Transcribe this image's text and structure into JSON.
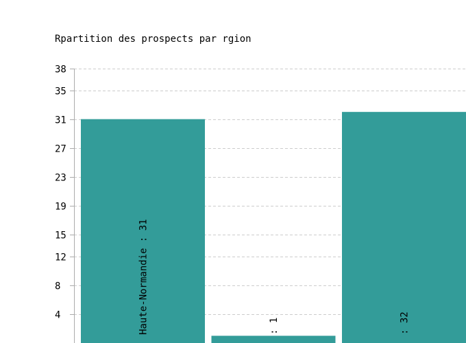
{
  "chart_data": {
    "type": "bar",
    "title": "Rpartition des prospects par rgion",
    "categories": [
      "Haute-Normandie",
      "",
      ""
    ],
    "values": [
      31,
      1,
      32
    ],
    "bar_labels": [
      "Haute-Normandie : 31",
      ": 1",
      ": 32"
    ],
    "y_ticks": [
      4,
      8,
      12,
      15,
      19,
      23,
      27,
      31,
      35,
      38
    ],
    "ylim": [
      0,
      38
    ],
    "grid": true,
    "grid_style": "dashed",
    "bar_color": "#339c99",
    "grid_color": "#cccccc",
    "axis_color": "#aaaaaa"
  }
}
